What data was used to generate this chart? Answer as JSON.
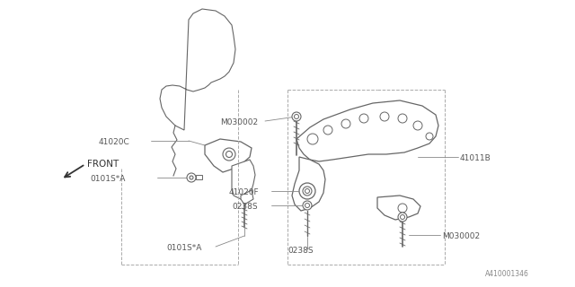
{
  "bg_color": "#ffffff",
  "line_color": "#666666",
  "text_color": "#555555",
  "diagram_ref": "A410001346",
  "figsize": [
    6.4,
    3.2
  ],
  "dpi": 100,
  "labels": {
    "front": "FRONT",
    "41020C": "41020C",
    "0101SA_left": "0101S*A",
    "0101SA_bot": "0101S*A",
    "41011B": "41011B",
    "M030002_left": "M030002",
    "M030002_right": "M030002",
    "41020F": "41020F",
    "0238S_left": "0238S",
    "0238S_bot": "0238S"
  }
}
